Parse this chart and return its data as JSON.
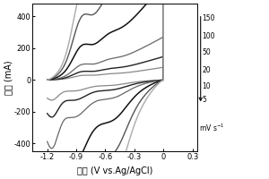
{
  "xlabel": "电位 (V vs.Ag/AgCl)",
  "ylabel": "电流 (mA)",
  "xlim": [
    -1.35,
    0.35
  ],
  "ylim": [
    -450,
    480
  ],
  "xticks": [
    -1.2,
    -0.9,
    -0.6,
    -0.3,
    0.0,
    0.3
  ],
  "yticks": [
    -400,
    -200,
    0,
    200,
    400
  ],
  "xtick_labels": [
    "-1.2",
    "-0.9",
    "-0.6",
    "-0.3",
    "0",
    "0.3"
  ],
  "ytick_labels": [
    "-400",
    "-200",
    "0",
    "200",
    "400"
  ],
  "scan_rates": [
    5,
    10,
    20,
    50,
    100,
    150
  ],
  "rate_labels": [
    "150",
    "100",
    "50",
    "20",
    "10",
    "5"
  ],
  "unit_label": "mV s⁻¹",
  "background": "#ffffff",
  "colors": {
    "5": "#888888",
    "10": "#1a1a1a",
    "20": "#555555",
    "50": "#1a1a1a",
    "100": "#666666",
    "150": "#aaaaaa"
  },
  "linewidths": {
    "5": 1.0,
    "10": 1.1,
    "20": 1.1,
    "50": 1.3,
    "100": 1.2,
    "150": 1.0
  }
}
